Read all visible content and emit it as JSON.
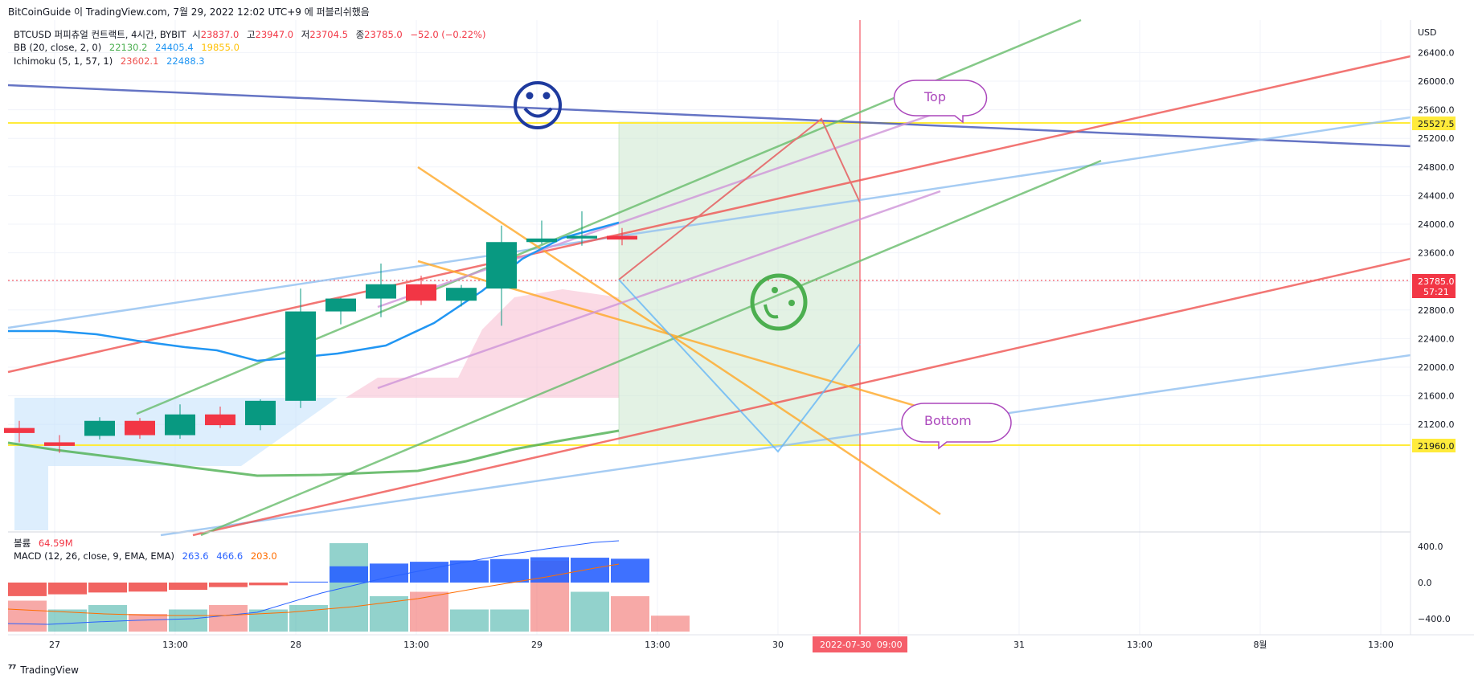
{
  "publisher_line": "BitCoinGuide 이 TradingView.com, 7월 29, 2022 12:02 UTC+9 에 퍼블리쉬했음",
  "footer_brand": "TradingView",
  "legend": {
    "symbol": "BTCUSD 퍼피츄얼 컨트랙트, 4시간, BYBIT",
    "o_label": "시",
    "o": "23837.0",
    "h_label": "고",
    "h": "23947.0",
    "l_label": "저",
    "l": "23704.5",
    "c_label": "종",
    "c": "23785.0",
    "chg": "−52.0 (−0.22%)",
    "bb_name": "BB (20, close, 2, 0)",
    "bb_basis": "22130.2",
    "bb_upper": "24405.4",
    "bb_lower": "19855.0",
    "ichi_name": "Ichimoku (5, 1, 57, 1)",
    "ichi_a": "23602.1",
    "ichi_b": "22488.3",
    "vol_name": "볼륨",
    "vol_val": "64.59M",
    "macd_name": "MACD (12, 26, close, 9, EMA, EMA)",
    "macd_hist": "263.6",
    "macd_line": "466.6",
    "macd_signal": "203.0"
  },
  "annotations": {
    "top": "Top",
    "bottom": "Bottom",
    "date_marker": "2022-07-30  09:00"
  },
  "price_labels": {
    "currency": "USD",
    "resistance": "25527.5",
    "support": "21960.0",
    "last_price": "23785.0",
    "countdown": "57:21"
  },
  "colors": {
    "up": "#089981",
    "down": "#f23645",
    "bb": "#2196f3",
    "resistance_line": "#ffeb3b",
    "green_line": "#4caf50",
    "red_line": "#ef5350",
    "blue_line": "#90bff0",
    "orange_line": "#ffa726",
    "navy_line": "#3f51b5",
    "purple_line": "#ce93d8",
    "bubble": "#ab47bc"
  },
  "chart_data": {
    "type": "candlestick",
    "timeframe": "4h",
    "y_axis_ticks": [
      26400,
      26000,
      25600,
      25200,
      24800,
      24400,
      24000,
      23600,
      23200,
      22800,
      22400,
      22000,
      21600,
      21200
    ],
    "x_axis_ticks": [
      "27",
      "13:00",
      "28",
      "13:00",
      "29",
      "13:00",
      "30",
      "2022-07-30  09:00",
      "31",
      "13:00",
      "8월",
      "13:00"
    ],
    "candles": [
      {
        "o": 21150,
        "h": 21250,
        "c": 21080,
        "l": 20950
      },
      {
        "o": 20950,
        "h": 21050,
        "c": 20900,
        "l": 20800
      },
      {
        "o": 21040,
        "h": 21300,
        "c": 21250,
        "l": 20990
      },
      {
        "o": 21250,
        "h": 21290,
        "c": 21050,
        "l": 21000
      },
      {
        "o": 21050,
        "h": 21480,
        "c": 21340,
        "l": 21000
      },
      {
        "o": 21340,
        "h": 21450,
        "c": 21190,
        "l": 21150
      },
      {
        "o": 21190,
        "h": 21550,
        "c": 21530,
        "l": 21120
      },
      {
        "o": 21530,
        "h": 23100,
        "c": 22780,
        "l": 21430
      },
      {
        "o": 22780,
        "h": 22970,
        "c": 22960,
        "l": 22600
      },
      {
        "o": 22960,
        "h": 23450,
        "c": 23160,
        "l": 22700
      },
      {
        "o": 23160,
        "h": 23280,
        "c": 22930,
        "l": 22870
      },
      {
        "o": 22930,
        "h": 23150,
        "c": 23110,
        "l": 22850
      },
      {
        "o": 23100,
        "h": 23980,
        "c": 23750,
        "l": 22580
      },
      {
        "o": 23750,
        "h": 24050,
        "c": 23800,
        "l": 23720
      },
      {
        "o": 23800,
        "h": 24180,
        "c": 23837,
        "l": 23700
      },
      {
        "o": 23837,
        "h": 23947,
        "c": 23785,
        "l": 23704.5
      }
    ],
    "resistance": 25527.5,
    "support": 21960.0,
    "last_price": 23785.0,
    "macd_axis_ticks": [
      400,
      0,
      -400
    ],
    "macd_histogram": [
      -150,
      -130,
      -110,
      -100,
      -80,
      -50,
      -30,
      10,
      180,
      210,
      230,
      245,
      260,
      280,
      275,
      263.6
    ]
  }
}
